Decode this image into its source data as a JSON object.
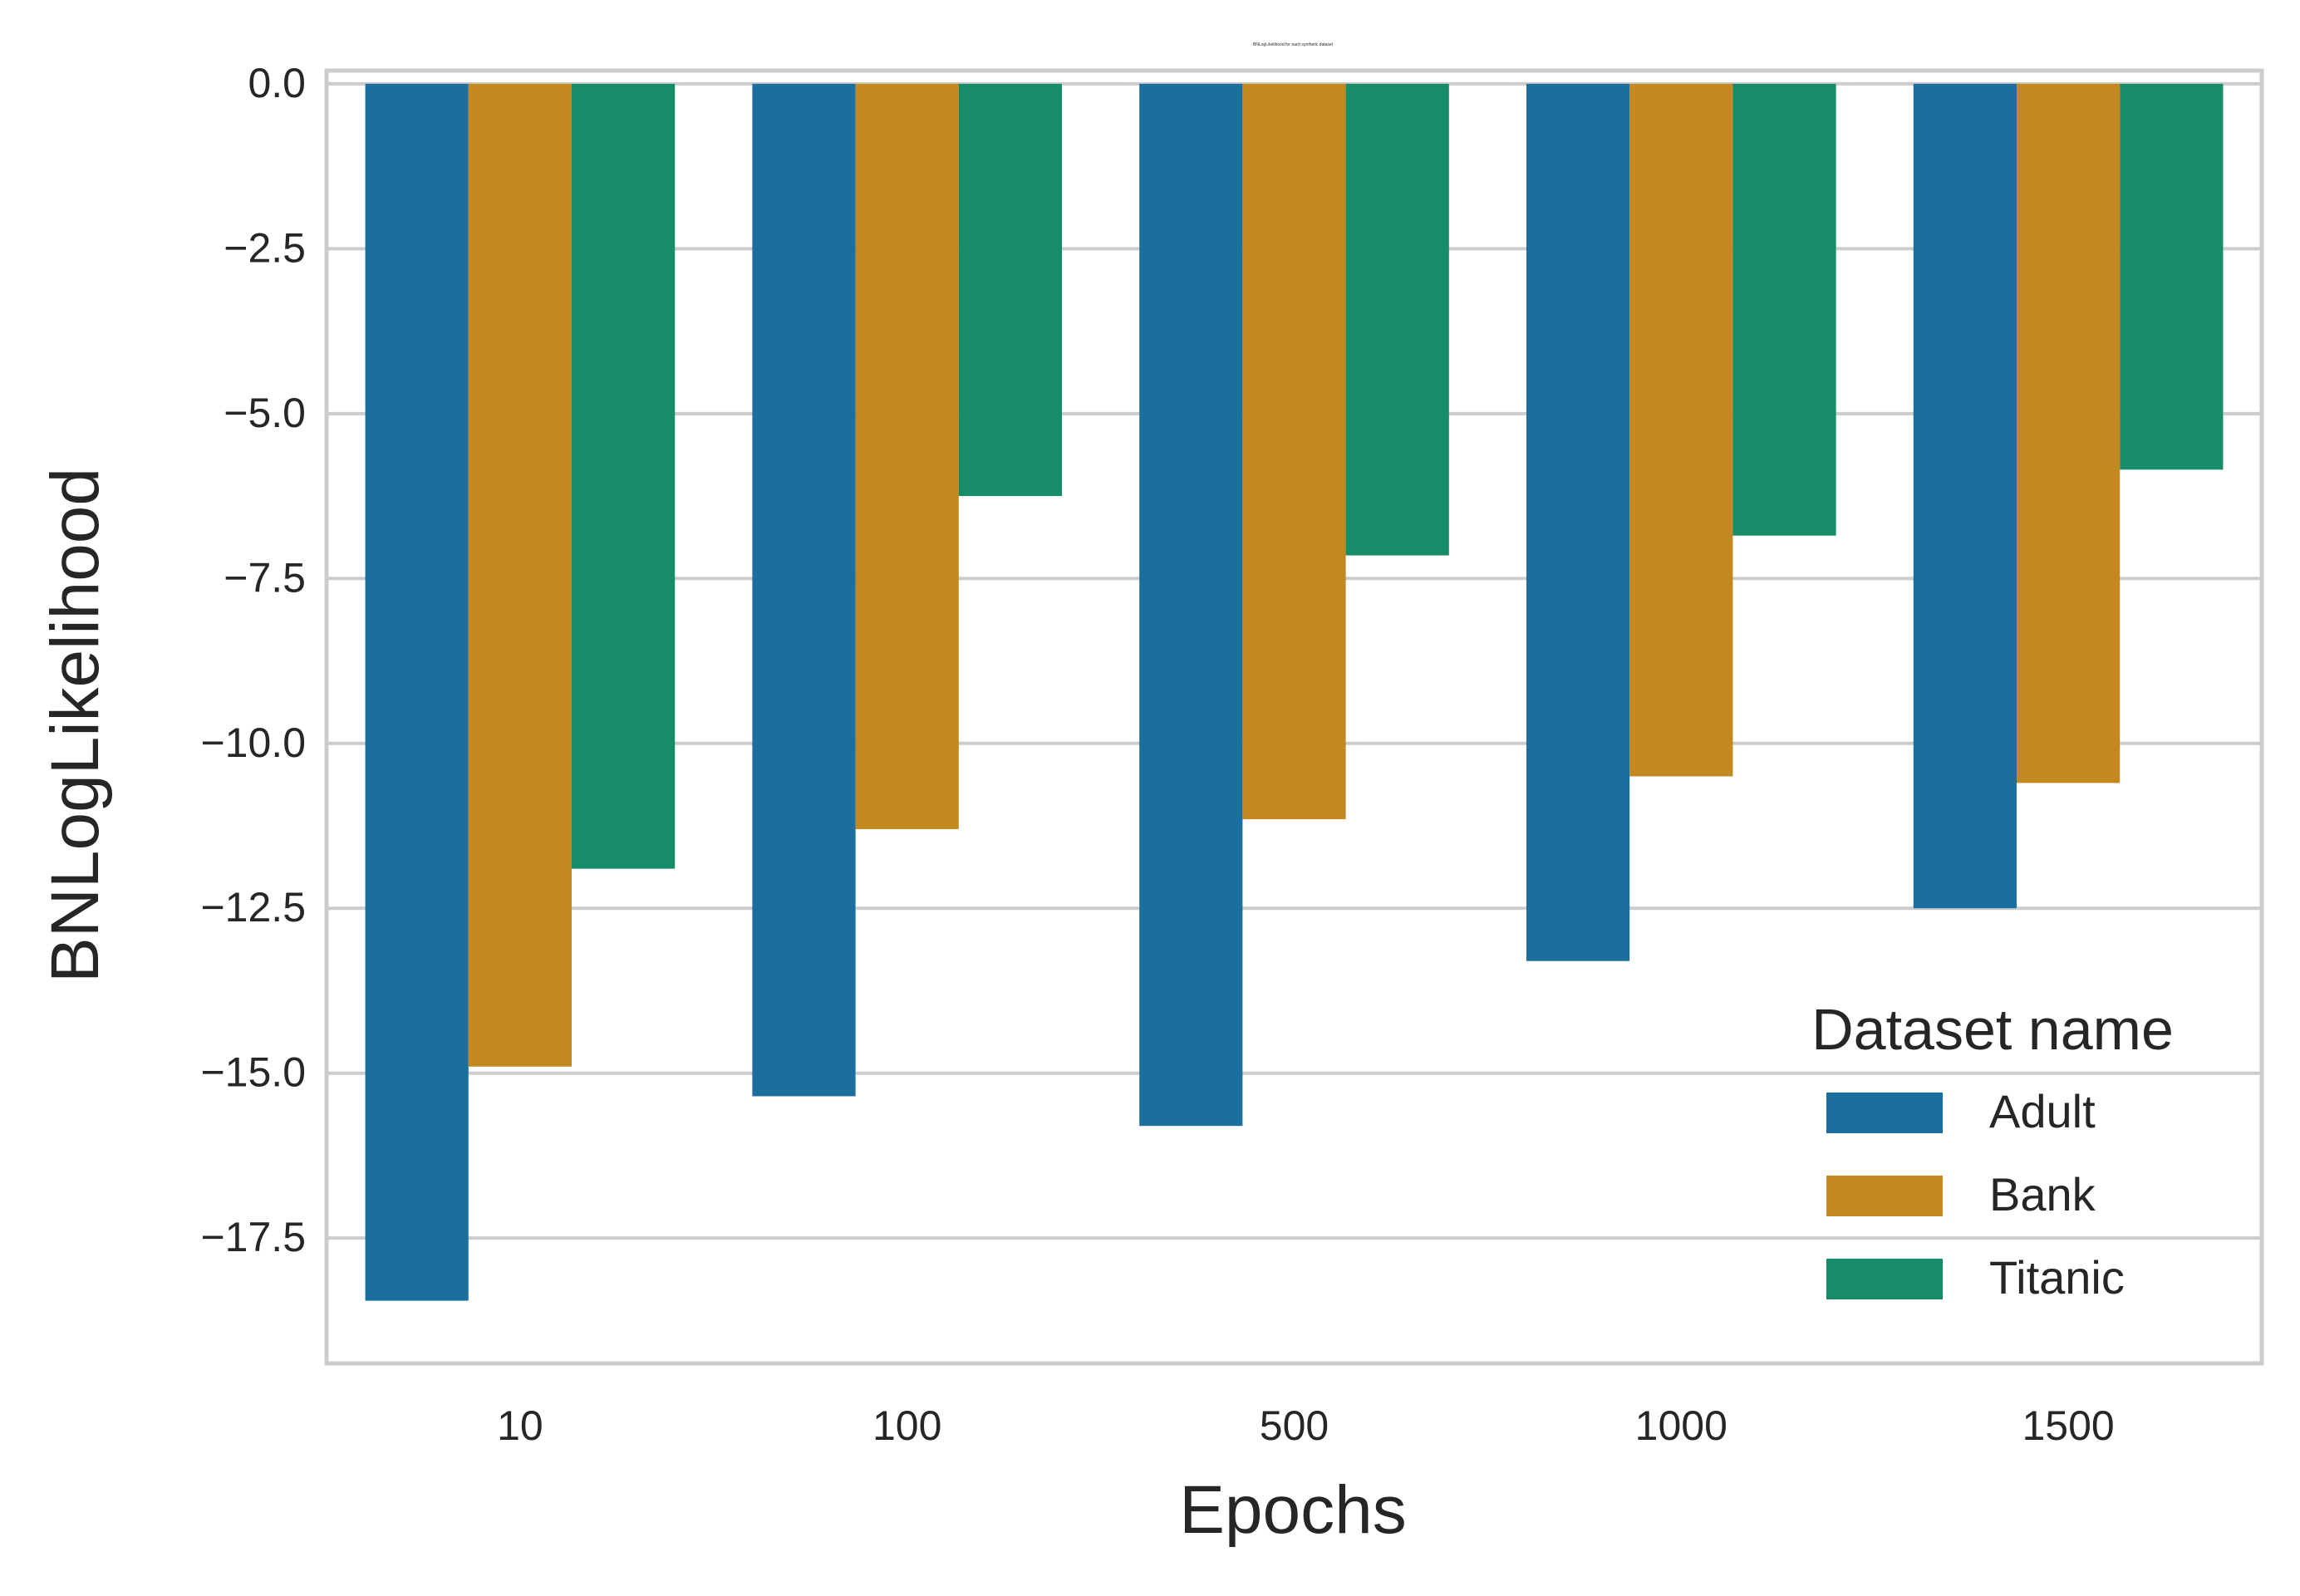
{
  "chart_data": {
    "type": "bar",
    "title": "BNLogLikelihood for each synthetic dataset",
    "xlabel": "Epochs",
    "ylabel": "BNLogLikelihood",
    "categories": [
      "10",
      "100",
      "500",
      "1000",
      "1500"
    ],
    "ylim": [
      -19.4,
      0.2
    ],
    "yticks": [
      0.0,
      -2.5,
      -5.0,
      -7.5,
      -10.0,
      -12.5,
      -15.0,
      -17.5
    ],
    "ytick_labels": [
      "0.0",
      "−2.5",
      "−5.0",
      "−7.5",
      "−10.0",
      "−12.5",
      "−15.0",
      "−17.5"
    ],
    "grid": "horizontal",
    "legend_position": "lower-right",
    "legend_title": "Dataset name",
    "series": [
      {
        "name": "Adult",
        "color": "#1a6f9f",
        "values": [
          -18.45,
          -15.35,
          -15.8,
          -13.3,
          -12.5
        ]
      },
      {
        "name": "Bank",
        "color": "#c38820",
        "values": [
          -14.9,
          -11.3,
          -11.15,
          -10.5,
          -10.6
        ]
      },
      {
        "name": "Titanic",
        "color": "#168c69",
        "values": [
          -11.9,
          -6.25,
          -7.15,
          -6.85,
          -5.85
        ]
      }
    ]
  }
}
